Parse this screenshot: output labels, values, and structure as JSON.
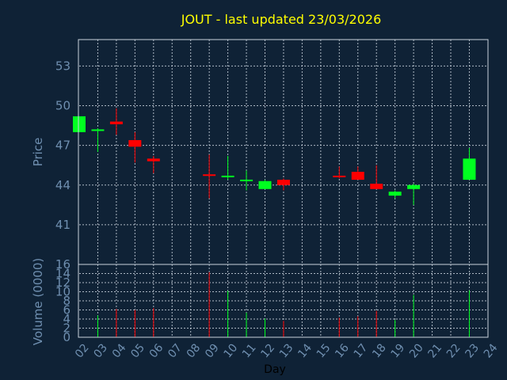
{
  "title": "JOUT - last updated 23/03/2026",
  "colors": {
    "background": "#0f2236",
    "title": "#ffff00",
    "up": "#00ff20",
    "down": "#ff0000",
    "axis_text": "#6f8fb0",
    "grid": "#c8d2dc"
  },
  "chart_data": [
    {
      "type": "candlestick",
      "ylabel": "Price",
      "xlabel": "Day",
      "ylim": [
        38,
        55
      ],
      "yticks": [
        "41",
        "44",
        "47",
        "50",
        "53"
      ],
      "xticks": [
        "02",
        "03",
        "04",
        "05",
        "06",
        "07",
        "08",
        "09",
        "10",
        "11",
        "12",
        "13",
        "14",
        "15",
        "16",
        "17",
        "18",
        "19",
        "20",
        "21",
        "22",
        "23",
        "24"
      ],
      "grid": true,
      "candles": [
        {
          "day": "02",
          "open": 48.0,
          "close": 49.2,
          "high": 49.2,
          "low": 48.0
        },
        {
          "day": "03",
          "open": 48.1,
          "close": 48.2,
          "high": 48.3,
          "low": 46.5
        },
        {
          "day": "04",
          "open": 48.8,
          "close": 48.6,
          "high": 49.8,
          "low": 47.8
        },
        {
          "day": "05",
          "open": 47.4,
          "close": 46.9,
          "high": 48.0,
          "low": 45.7
        },
        {
          "day": "06",
          "open": 46.0,
          "close": 45.8,
          "high": 46.2,
          "low": 44.9
        },
        {
          "day": "09",
          "open": 44.8,
          "close": 44.7,
          "high": 46.3,
          "low": 43.0
        },
        {
          "day": "10",
          "open": 44.6,
          "close": 44.7,
          "high": 46.2,
          "low": 44.4
        },
        {
          "day": "11",
          "open": 44.3,
          "close": 44.4,
          "high": 45.1,
          "low": 43.6
        },
        {
          "day": "12",
          "open": 43.7,
          "close": 44.3,
          "high": 44.4,
          "low": 43.7
        },
        {
          "day": "13",
          "open": 44.4,
          "close": 44.0,
          "high": 44.5,
          "low": 43.6
        },
        {
          "day": "16",
          "open": 44.7,
          "close": 44.6,
          "high": 45.4,
          "low": 44.5
        },
        {
          "day": "17",
          "open": 45.0,
          "close": 44.4,
          "high": 45.4,
          "low": 44.4
        },
        {
          "day": "18",
          "open": 44.1,
          "close": 43.7,
          "high": 45.5,
          "low": 43.7
        },
        {
          "day": "19",
          "open": 43.2,
          "close": 43.5,
          "high": 43.6,
          "low": 43.0
        },
        {
          "day": "20",
          "open": 43.7,
          "close": 44.0,
          "high": 44.1,
          "low": 42.5
        },
        {
          "day": "23",
          "open": 44.4,
          "close": 46.0,
          "high": 46.8,
          "low": 44.4
        }
      ]
    },
    {
      "type": "bar",
      "ylabel": "Volume (0000)",
      "ylim": [
        0,
        16
      ],
      "yticks": [
        "0",
        "2",
        "4",
        "6",
        "8",
        "10",
        "12",
        "14",
        "16"
      ],
      "grid": true,
      "bars": [
        {
          "day": "03",
          "value": 4.8,
          "direction": "up"
        },
        {
          "day": "04",
          "value": 6.2,
          "direction": "down"
        },
        {
          "day": "05",
          "value": 6.0,
          "direction": "down"
        },
        {
          "day": "06",
          "value": 6.4,
          "direction": "down"
        },
        {
          "day": "09",
          "value": 14.3,
          "direction": "down"
        },
        {
          "day": "10",
          "value": 10.2,
          "direction": "up"
        },
        {
          "day": "11",
          "value": 5.4,
          "direction": "up"
        },
        {
          "day": "12",
          "value": 4.1,
          "direction": "up"
        },
        {
          "day": "13",
          "value": 3.6,
          "direction": "down"
        },
        {
          "day": "16",
          "value": 4.3,
          "direction": "down"
        },
        {
          "day": "17",
          "value": 4.6,
          "direction": "down"
        },
        {
          "day": "18",
          "value": 5.8,
          "direction": "down"
        },
        {
          "day": "19",
          "value": 3.8,
          "direction": "up"
        },
        {
          "day": "20",
          "value": 9.3,
          "direction": "up"
        },
        {
          "day": "23",
          "value": 10.3,
          "direction": "up"
        }
      ]
    }
  ]
}
